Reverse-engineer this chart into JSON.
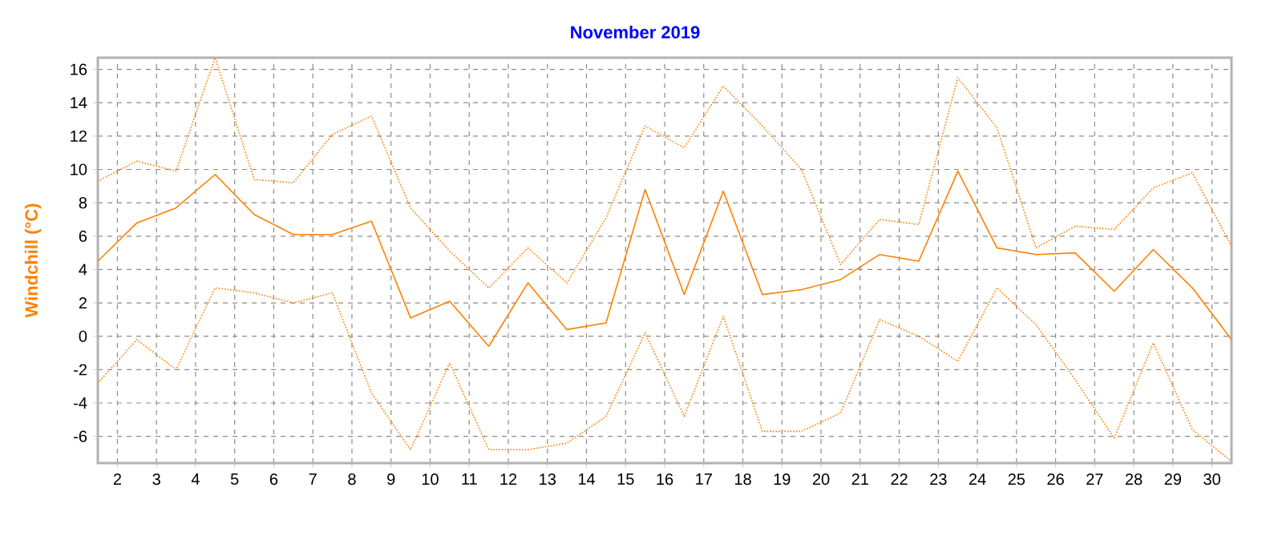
{
  "chart_data": {
    "type": "line",
    "title": "November 2019",
    "ylabel": "Windchill  (°C)",
    "x": [
      1.5,
      2.5,
      3.5,
      4.5,
      5.5,
      6.5,
      7.5,
      8.5,
      9.5,
      10.5,
      11.5,
      12.5,
      13.5,
      14.5,
      15.5,
      16.5,
      17.5,
      18.5,
      19.5,
      20.5,
      21.5,
      22.5,
      23.5,
      24.5,
      25.5,
      26.5,
      27.5,
      28.5,
      29.5,
      30.5
    ],
    "series": [
      {
        "color": "#ff8000",
        "line_style": "dotted",
        "values": [
          9.3,
          10.5,
          9.9,
          16.7,
          9.4,
          9.2,
          12.1,
          13.2,
          7.7,
          5.1,
          2.9,
          5.3,
          3.2,
          7.1,
          12.6,
          11.3,
          15.0,
          12.6,
          10.0,
          4.3,
          7.0,
          6.7,
          15.5,
          12.5,
          5.3,
          6.6,
          6.4,
          8.9,
          9.8,
          5.4
        ]
      },
      {
        "color": "#ff8000",
        "line_style": "solid",
        "values": [
          4.5,
          6.8,
          7.7,
          9.7,
          7.3,
          6.1,
          6.1,
          6.9,
          1.1,
          2.1,
          -0.6,
          3.2,
          0.4,
          0.8,
          8.8,
          2.5,
          8.7,
          2.5,
          2.8,
          3.4,
          4.9,
          4.5,
          9.9,
          5.3,
          4.9,
          5.0,
          2.7,
          5.2,
          2.9,
          -0.2
        ]
      },
      {
        "color": "#ff8000",
        "line_style": "dotted",
        "values": [
          -2.8,
          -0.2,
          -2.0,
          2.9,
          2.6,
          2.0,
          2.6,
          -3.4,
          -6.8,
          -1.6,
          -6.8,
          -6.8,
          -6.4,
          -4.8,
          0.2,
          -4.8,
          1.2,
          -5.7,
          -5.7,
          -4.6,
          1.0,
          0.0,
          -1.5,
          2.9,
          0.7,
          -2.6,
          -6.1,
          -0.4,
          -5.6,
          -7.5
        ]
      }
    ],
    "xlim": [
      1.5,
      30.5
    ],
    "ylim": [
      -7.6,
      16.7
    ],
    "xticks": [
      2,
      3,
      4,
      5,
      6,
      7,
      8,
      9,
      10,
      11,
      12,
      13,
      14,
      15,
      16,
      17,
      18,
      19,
      20,
      21,
      22,
      23,
      24,
      25,
      26,
      27,
      28,
      29,
      30
    ],
    "yticks": [
      -6,
      -4,
      -2,
      0,
      2,
      4,
      6,
      8,
      10,
      12,
      14,
      16
    ],
    "grid": true,
    "marker": "none"
  }
}
